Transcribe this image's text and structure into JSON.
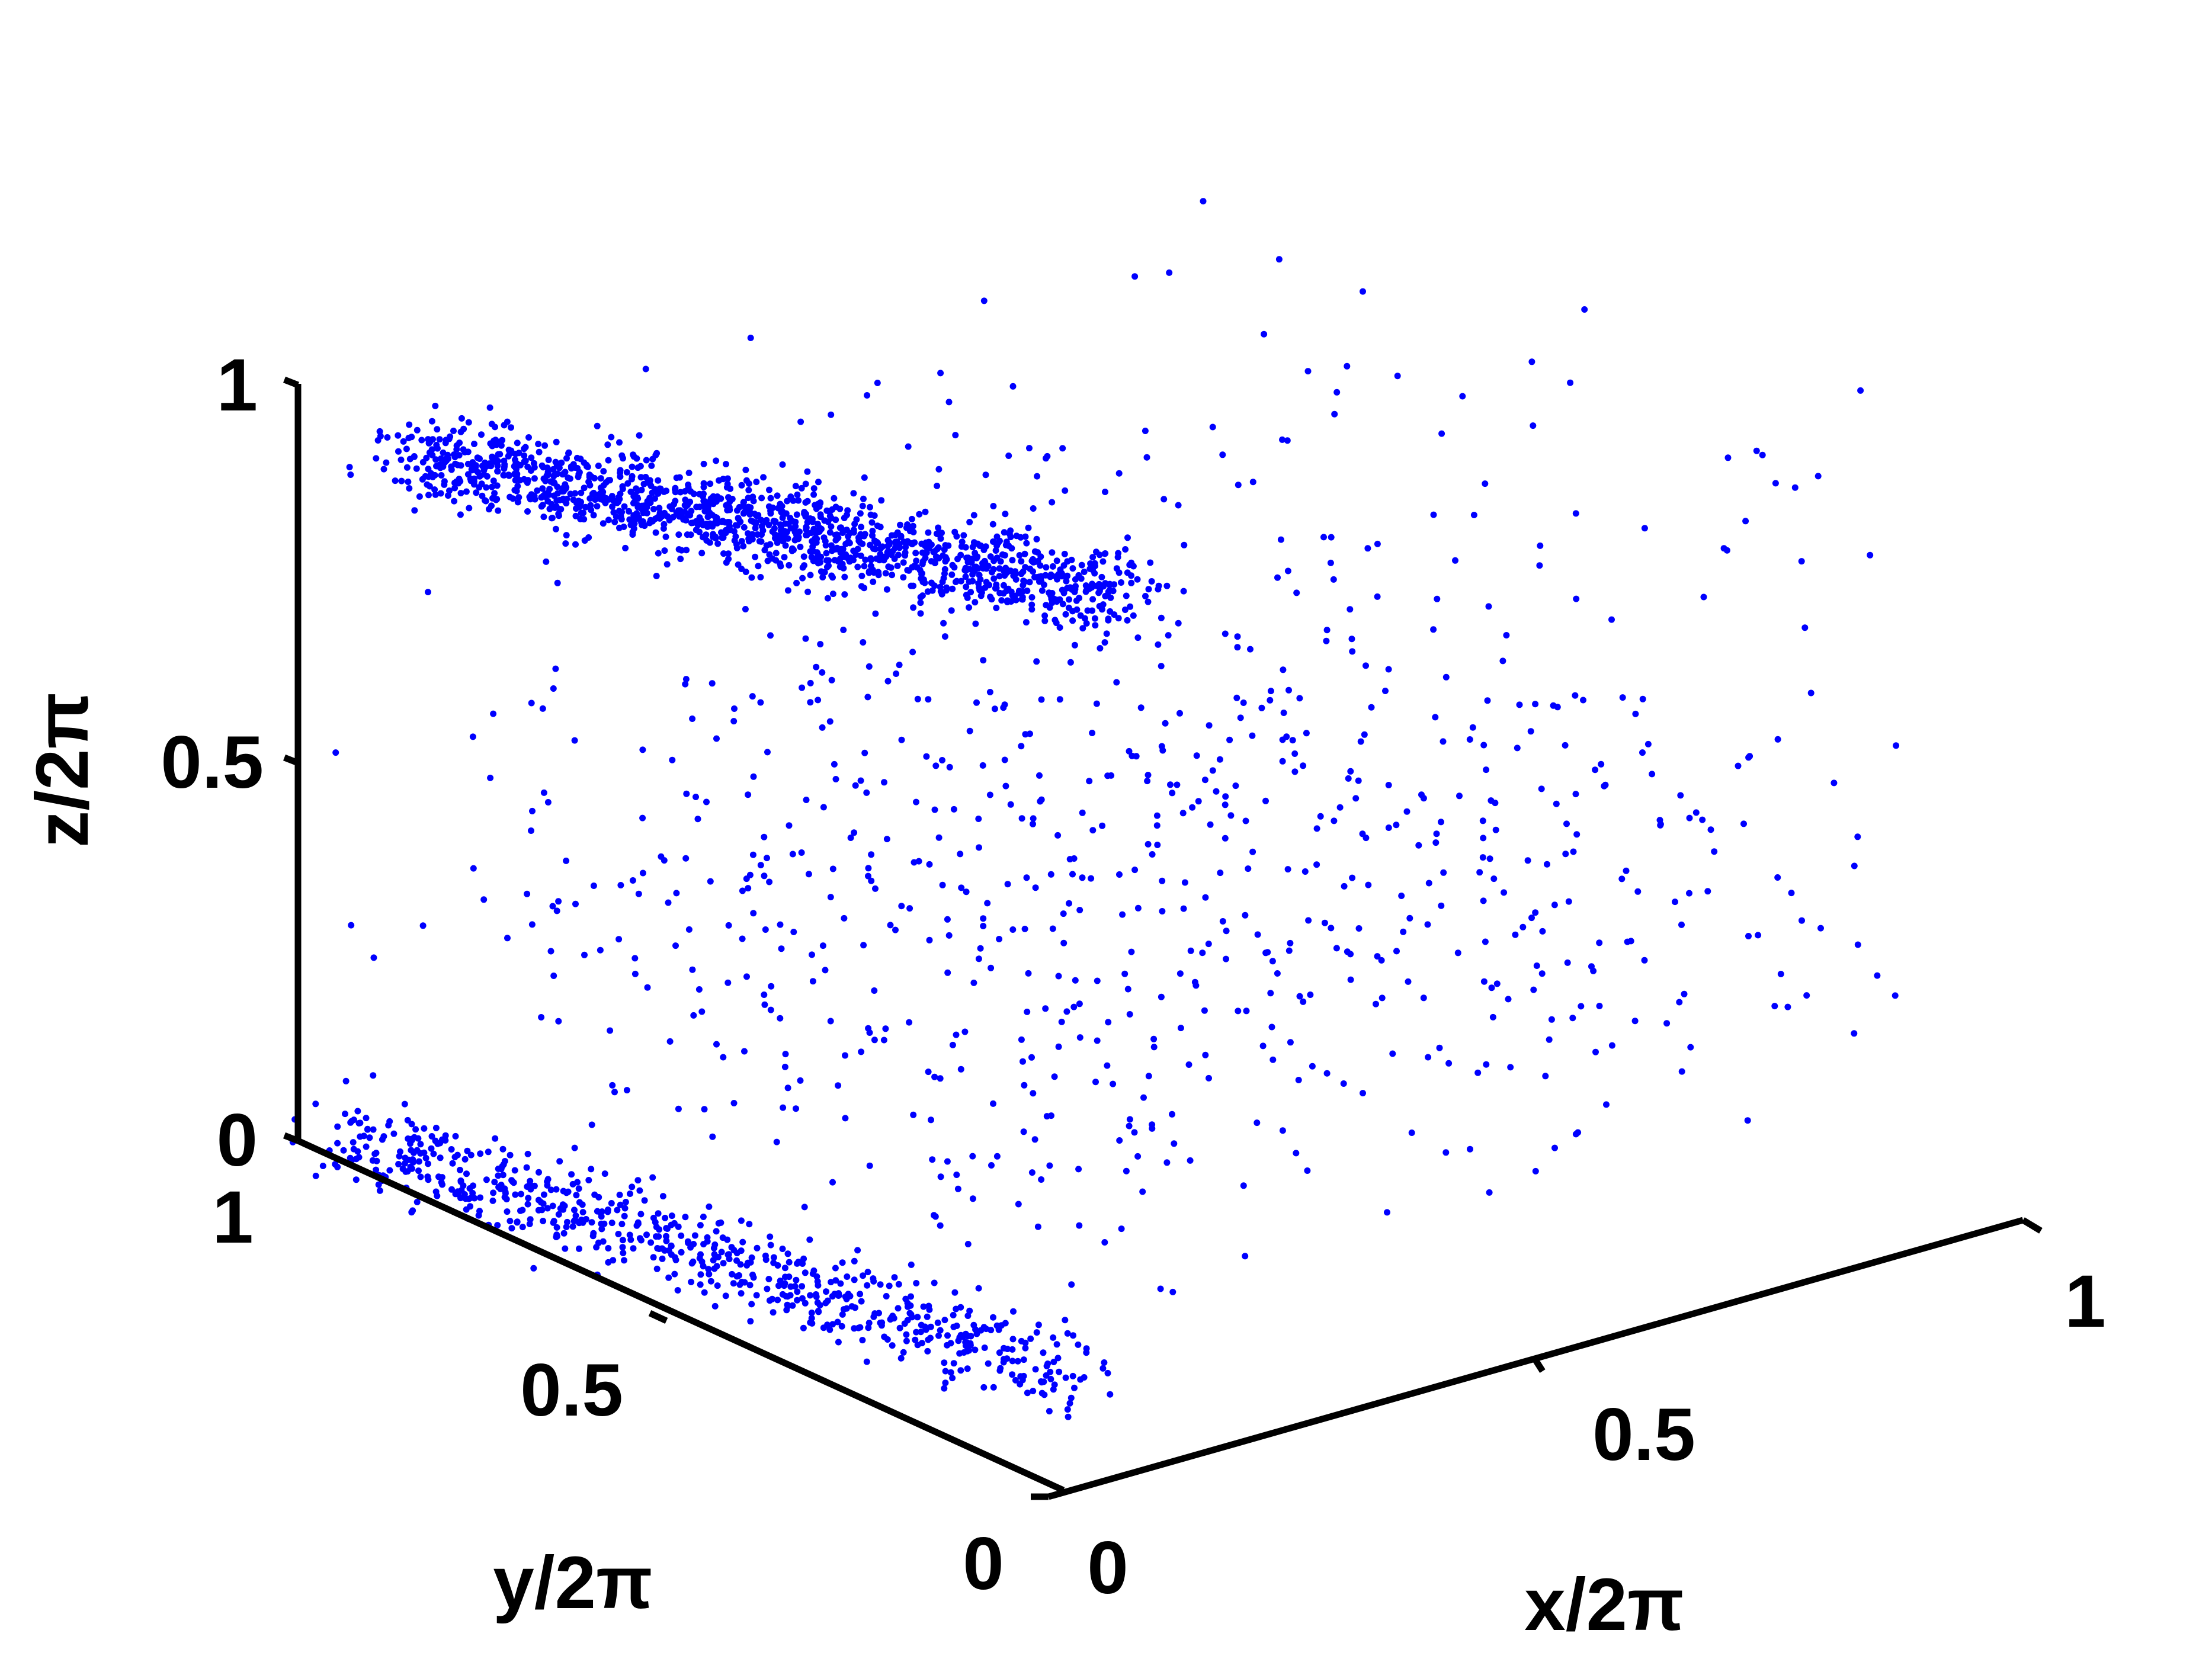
{
  "chart_data": {
    "type": "scatter",
    "projection": "3d",
    "title": "",
    "xlabel": "x/2π",
    "ylabel": "y/2π",
    "zlabel": "z/2π",
    "xlim": [
      0,
      1
    ],
    "ylim": [
      0,
      1
    ],
    "zlim": [
      0,
      1
    ],
    "xticks": [
      {
        "value": 0,
        "label": "0"
      },
      {
        "value": 0.5,
        "label": "0.5"
      },
      {
        "value": 1,
        "label": "1"
      }
    ],
    "yticks": [
      {
        "value": 0,
        "label": "0"
      },
      {
        "value": 0.5,
        "label": "0.5"
      },
      {
        "value": 1,
        "label": "1"
      }
    ],
    "zticks": [
      {
        "value": 0,
        "label": "0"
      },
      {
        "value": 0.5,
        "label": "0.5"
      },
      {
        "value": 1,
        "label": "1"
      }
    ],
    "grid": false,
    "marker_color": "#0000ff",
    "axis_color": "#000000",
    "clusters": [
      {
        "kind": "dense-band",
        "z": 0.9,
        "x_range": [
          0.08,
          0.34
        ],
        "y_range": [
          0.95,
          0.35
        ],
        "count": 1400,
        "spread": 0.022
      },
      {
        "kind": "dense-band",
        "z": 0.03,
        "x_range": [
          0.0,
          0.15
        ],
        "y_range": [
          0.95,
          0.15
        ],
        "count": 700,
        "spread": 0.02
      },
      {
        "kind": "sparse-layer",
        "z_range": [
          0.15,
          0.55
        ],
        "x_range": [
          0.0,
          1.0
        ],
        "y_range": [
          0.05,
          1.0
        ],
        "count": 650
      },
      {
        "kind": "sparse-layer",
        "z_range": [
          0.6,
          1.0
        ],
        "x_range": [
          0.0,
          1.0
        ],
        "y_range": [
          0.05,
          1.0
        ],
        "count": 170
      }
    ]
  }
}
